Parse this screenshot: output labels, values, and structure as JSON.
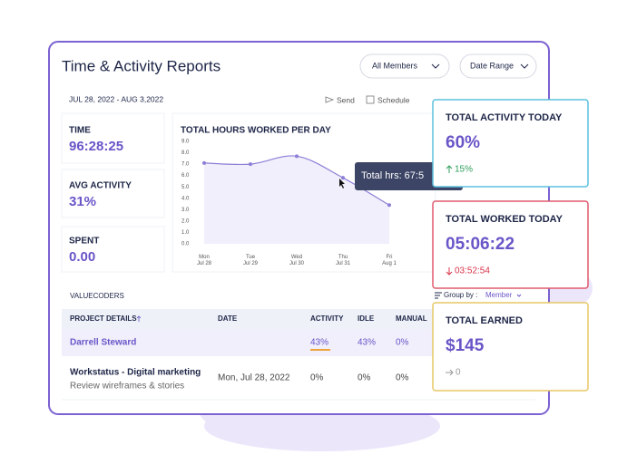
{
  "header": {
    "title": "Time & Activity Reports",
    "filters": [
      "All Members",
      "Date Range"
    ]
  },
  "date_range": "JUL 28, 2022 - AUG 3,2022",
  "actions": [
    "Send",
    "Schedule"
  ],
  "stats": [
    {
      "label": "TIME",
      "value": "96:28:25"
    },
    {
      "label": "AVG ACTIVITY",
      "value": "31%"
    },
    {
      "label": "SPENT",
      "value": "0.00"
    }
  ],
  "chart_data": {
    "type": "line",
    "title": "TOTAL HOURS WORKED PER DAY",
    "categories": [
      "Mon Jul 28",
      "Tue Jul 29",
      "Wed Jul 30",
      "Thu Jul 31",
      "Fri Aug 1"
    ],
    "values": [
      7.1,
      7.0,
      7.7,
      5.8,
      3.4
    ],
    "color": "#8b7fd6",
    "ylim": [
      0,
      9
    ],
    "yticks": [
      {
        "value": 0,
        "label": "0.0"
      },
      {
        "value": 1,
        "label": "1.0"
      },
      {
        "value": 2,
        "label": "2.0"
      },
      {
        "value": 3,
        "label": "3.0"
      },
      {
        "value": 4,
        "label": "4.0"
      },
      {
        "value": 5,
        "label": "5.0"
      },
      {
        "value": 6,
        "label": "6.0"
      },
      {
        "value": 7,
        "label": "7.0"
      },
      {
        "value": 8,
        "label": "8.0"
      },
      {
        "value": 9,
        "label": "9.0"
      }
    ],
    "grid": false,
    "tooltip": "Total hrs: 67:5"
  },
  "team": "VALUECODERS",
  "group_by": {
    "label": "Group by :",
    "value": "Member"
  },
  "table": {
    "columns": [
      "PROJECT DETAILS",
      "DATE",
      "ACTIVITY",
      "IDLE",
      "MANUAL"
    ],
    "rows": [
      {
        "project": "Darrell Steward",
        "activity": "43%",
        "idle": "43%",
        "manual": "0%"
      },
      {
        "project": "Workstatus - Digital marketing",
        "task": "Review wireframes & stories",
        "date": "Mon, Jul 28, 2022",
        "activity": "0%",
        "idle": "0%",
        "manual": "0%"
      }
    ]
  },
  "cards": [
    {
      "title": "TOTAL ACTIVITY TODAY",
      "value": "60%",
      "change": "15%"
    },
    {
      "title": "TOTAL WORKED TODAY",
      "value": "05:06:22",
      "change": "03:52:54"
    },
    {
      "title": "TOTAL EARNED",
      "value": "$145",
      "change": "0"
    }
  ]
}
